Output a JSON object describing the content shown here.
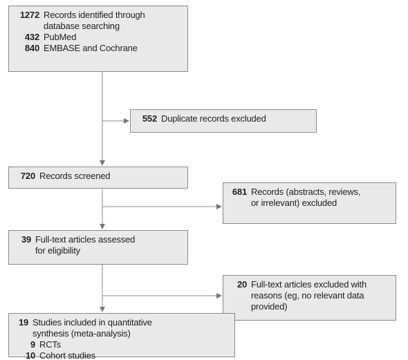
{
  "nodes": [
    {
      "count": 1272,
      "lines": [
        "Records identified through",
        "database searching"
      ],
      "sub": [
        {
          "count": 432,
          "label": "PubMed"
        },
        {
          "count": 840,
          "label": "EMBASE and Cochrane"
        }
      ]
    },
    {
      "count": 552,
      "lines": [
        "Duplicate records excluded"
      ]
    },
    {
      "count": 720,
      "lines": [
        "Records screened"
      ]
    },
    {
      "count": 681,
      "lines": [
        "Records (abstracts, reviews,",
        "or irrelevant) excluded"
      ]
    },
    {
      "count": 39,
      "lines": [
        "Full-text articles assessed",
        "for eligibility"
      ]
    },
    {
      "count": 20,
      "lines": [
        "Full-text articles excluded with",
        "reasons (eg, no relevant data",
        "provided)"
      ]
    },
    {
      "count": 19,
      "lines": [
        "Studies included in quantitative",
        "synthesis (meta-analysis)"
      ],
      "sub": [
        {
          "count": 9,
          "label": "RCTs"
        },
        {
          "count": 10,
          "label": "Cohort studies"
        }
      ]
    }
  ]
}
